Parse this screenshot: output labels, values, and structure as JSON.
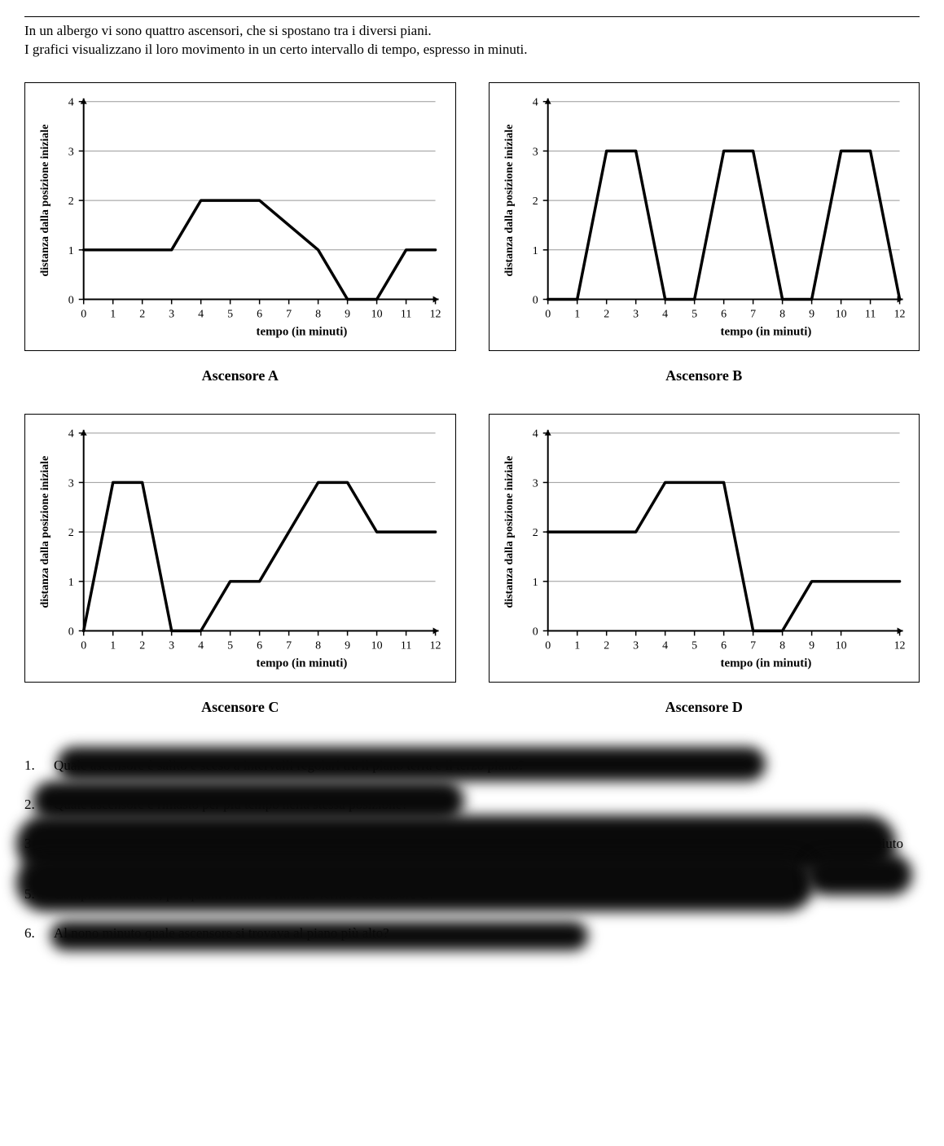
{
  "intro": {
    "line1": "In un albergo vi sono quattro ascensori, che si spostano tra i diversi piani.",
    "line2": "I grafici visualizzano il loro movimento in un certo intervallo di tempo, espresso in minuti."
  },
  "axis": {
    "xlabel": "tempo (in minuti)",
    "ylabel": "distanza dalla posizione iniziale",
    "ylim": [
      0,
      4
    ],
    "yticks": [
      0,
      1,
      2,
      3,
      4
    ]
  },
  "charts": {
    "A": {
      "title": "Ascensore A",
      "xticks": [
        0,
        1,
        2,
        3,
        4,
        5,
        6,
        7,
        8,
        9,
        10,
        11,
        12
      ],
      "points": [
        [
          0,
          1
        ],
        [
          3,
          1
        ],
        [
          4,
          2
        ],
        [
          6,
          2
        ],
        [
          8,
          1
        ],
        [
          9,
          0
        ],
        [
          10,
          0
        ],
        [
          11,
          1
        ],
        [
          12,
          1
        ]
      ]
    },
    "B": {
      "title": "Ascensore B",
      "xticks": [
        0,
        1,
        2,
        3,
        4,
        5,
        6,
        7,
        8,
        9,
        10,
        11,
        12
      ],
      "points": [
        [
          0,
          0
        ],
        [
          1,
          0
        ],
        [
          2,
          3
        ],
        [
          3,
          3
        ],
        [
          4,
          0
        ],
        [
          5,
          0
        ],
        [
          6,
          3
        ],
        [
          7,
          3
        ],
        [
          8,
          0
        ],
        [
          9,
          0
        ],
        [
          10,
          3
        ],
        [
          11,
          3
        ],
        [
          12,
          0
        ]
      ]
    },
    "C": {
      "title": "Ascensore C",
      "xticks": [
        0,
        1,
        2,
        3,
        4,
        5,
        6,
        7,
        8,
        9,
        10,
        11,
        12
      ],
      "points": [
        [
          0,
          0
        ],
        [
          1,
          3
        ],
        [
          2,
          3
        ],
        [
          3,
          0
        ],
        [
          4,
          0
        ],
        [
          5,
          1
        ],
        [
          6,
          1
        ],
        [
          8,
          3
        ],
        [
          9,
          3
        ],
        [
          10,
          2
        ],
        [
          12,
          2
        ]
      ]
    },
    "D": {
      "title": "Ascensore D",
      "xticks": [
        0,
        1,
        2,
        3,
        4,
        5,
        6,
        7,
        8,
        9,
        10,
        12
      ],
      "points": [
        [
          0,
          2
        ],
        [
          3,
          2
        ],
        [
          4,
          3
        ],
        [
          6,
          3
        ],
        [
          7,
          0
        ],
        [
          8,
          0
        ],
        [
          9,
          1
        ],
        [
          10,
          1
        ],
        [
          12,
          1
        ]
      ]
    }
  },
  "colors": {
    "page_bg": "#ffffff",
    "text": "#000000",
    "grid": "#999999",
    "axis": "#000000",
    "series": "#000000",
    "redaction": "#0a0a0a"
  },
  "style": {
    "series_stroke_width": 3.5,
    "axis_stroke_width": 2,
    "grid_stroke_width": 1,
    "tick_fontsize": 14,
    "axis_label_fontsize": 15,
    "title_fontsize": 18
  },
  "questions": {
    "q1": {
      "num": "1.",
      "text": "Quale ascensore è salito e sceso a intervalli regolari tra il piano terra e il terzo piano?"
    },
    "q2": {
      "num": "2.",
      "text": "Quale ascensore è rimasto per più tempo nella stessa posizione?"
    },
    "q3": {
      "num": "3.",
      "text": ""
    },
    "q4_fragment": "ha compiuto",
    "q5": {
      "num": "5.",
      "text": "Complessivamente, per quanti minuti è rimasto fermo l'ascensore C?"
    },
    "q6": {
      "num": "6.",
      "text": "Al nono minuto quale ascensore si trovava al piano più alto?"
    }
  }
}
